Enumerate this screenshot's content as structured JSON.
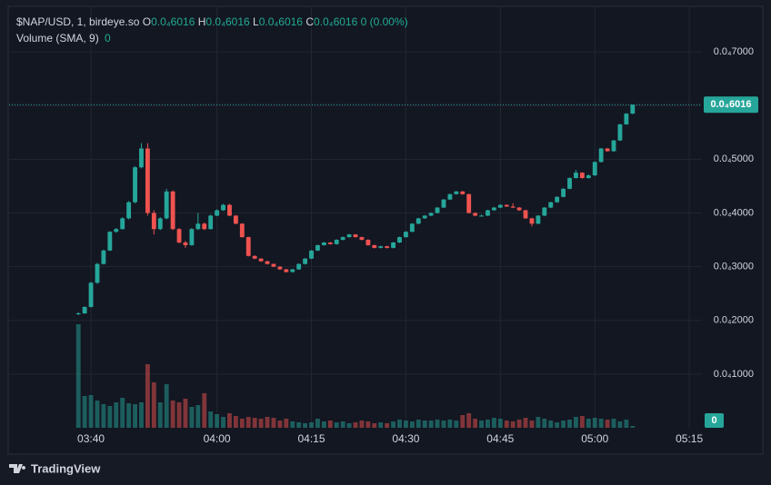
{
  "legend": {
    "symbol": "$NAP/USD, 1, birdeye.so",
    "fields": [
      {
        "key": "O",
        "value": "0.0₄6016"
      },
      {
        "key": "H",
        "value": "0.0₄6016"
      },
      {
        "key": "L",
        "value": "0.0₄6016"
      },
      {
        "key": "C",
        "value": "0.0₄6016"
      }
    ],
    "change": "0 (0.00%)"
  },
  "volume_legend": {
    "name": "Volume (SMA, 9)",
    "value": "0"
  },
  "footer": "TradingView",
  "chart_data": {
    "type": "candlestick",
    "x": [
      "03:38",
      "03:39",
      "03:40",
      "03:41",
      "03:42",
      "03:43",
      "03:44",
      "03:45",
      "03:46",
      "03:47",
      "03:48",
      "03:49",
      "03:50",
      "03:51",
      "03:52",
      "03:53",
      "03:54",
      "03:55",
      "03:56",
      "03:57",
      "03:58",
      "03:59",
      "04:00",
      "04:01",
      "04:02",
      "04:03",
      "04:04",
      "04:05",
      "04:06",
      "04:07",
      "04:08",
      "04:09",
      "04:10",
      "04:11",
      "04:12",
      "04:13",
      "04:14",
      "04:15",
      "04:16",
      "04:17",
      "04:18",
      "04:19",
      "04:20",
      "04:21",
      "04:22",
      "04:23",
      "04:24",
      "04:25",
      "04:26",
      "04:27",
      "04:28",
      "04:29",
      "04:30",
      "04:31",
      "04:32",
      "04:33",
      "04:34",
      "04:35",
      "04:36",
      "04:37",
      "04:38",
      "04:39",
      "04:40",
      "04:41",
      "04:42",
      "04:43",
      "04:44",
      "04:45",
      "04:46",
      "04:47",
      "04:48",
      "04:49",
      "04:50",
      "04:51",
      "04:52",
      "04:53",
      "04:54",
      "04:55",
      "04:56",
      "04:57",
      "04:58",
      "04:59",
      "05:00",
      "05:01",
      "05:02",
      "05:03",
      "05:04",
      "05:05",
      "05:06"
    ],
    "open": [
      2.12e-05,
      2.13e-05,
      2.25e-05,
      2.7e-05,
      3.05e-05,
      3.3e-05,
      3.65e-05,
      3.7e-05,
      3.9e-05,
      4.2e-05,
      4.85e-05,
      5.2e-05,
      4e-05,
      3.7e-05,
      3.9e-05,
      4.4e-05,
      3.7e-05,
      3.45e-05,
      3.4e-05,
      3.7e-05,
      3.8e-05,
      3.7e-05,
      3.95e-05,
      4.05e-05,
      4.15e-05,
      3.95e-05,
      3.8e-05,
      3.55e-05,
      3.2e-05,
      3.15e-05,
      3.1e-05,
      3.05e-05,
      3e-05,
      2.95e-05,
      2.9e-05,
      2.95e-05,
      3.05e-05,
      3.15e-05,
      3.3e-05,
      3.4e-05,
      3.45e-05,
      3.42e-05,
      3.5e-05,
      3.55e-05,
      3.6e-05,
      3.55e-05,
      3.5e-05,
      3.4e-05,
      3.35e-05,
      3.38e-05,
      3.35e-05,
      3.45e-05,
      3.55e-05,
      3.65e-05,
      3.8e-05,
      3.9e-05,
      3.95e-05,
      4e-05,
      4.1e-05,
      4.25e-05,
      4.35e-05,
      4.4e-05,
      4.35e-05,
      4e-05,
      3.95e-05,
      3.95e-05,
      4.05e-05,
      4.1e-05,
      4.15e-05,
      4.12e-05,
      4.1e-05,
      4.05e-05,
      3.9e-05,
      3.8e-05,
      3.95e-05,
      4.1e-05,
      4.2e-05,
      4.3e-05,
      4.45e-05,
      4.65e-05,
      4.75e-05,
      4.65e-05,
      4.7e-05,
      4.95e-05,
      5.2e-05,
      5.15e-05,
      5.35e-05,
      5.65e-05,
      5.85e-05
    ],
    "high": [
      2.15e-05,
      2.26e-05,
      2.72e-05,
      3.07e-05,
      3.32e-05,
      3.66e-05,
      3.72e-05,
      3.92e-05,
      4.22e-05,
      4.87e-05,
      5.3e-05,
      5.3e-05,
      4.05e-05,
      3.92e-05,
      4.45e-05,
      4.42e-05,
      3.72e-05,
      3.48e-05,
      3.72e-05,
      4e-05,
      3.82e-05,
      3.97e-05,
      4.07e-05,
      4.17e-05,
      4.17e-05,
      3.96e-05,
      3.81e-05,
      3.56e-05,
      3.21e-05,
      3.16e-05,
      3.11e-05,
      3.06e-05,
      3.01e-05,
      2.96e-05,
      2.96e-05,
      3.06e-05,
      3.16e-05,
      3.31e-05,
      3.41e-05,
      3.46e-05,
      3.46e-05,
      3.51e-05,
      3.56e-05,
      3.61e-05,
      3.61e-05,
      3.56e-05,
      3.51e-05,
      3.41e-05,
      3.39e-05,
      3.39e-05,
      3.46e-05,
      3.56e-05,
      3.66e-05,
      3.81e-05,
      3.91e-05,
      3.96e-05,
      4.01e-05,
      4.11e-05,
      4.26e-05,
      4.36e-05,
      4.41e-05,
      4.41e-05,
      4.36e-05,
      4.01e-05,
      3.97e-05,
      4.06e-05,
      4.11e-05,
      4.16e-05,
      4.16e-05,
      4.18e-05,
      4.11e-05,
      4.06e-05,
      3.91e-05,
      3.96e-05,
      4.11e-05,
      4.21e-05,
      4.31e-05,
      4.46e-05,
      4.66e-05,
      4.8e-05,
      4.76e-05,
      4.72e-05,
      4.96e-05,
      5.21e-05,
      5.21e-05,
      5.36e-05,
      5.66e-05,
      5.86e-05,
      6.016e-05
    ],
    "low": [
      2.1e-05,
      2.12e-05,
      2.24e-05,
      2.68e-05,
      3.04e-05,
      3.29e-05,
      3.63e-05,
      3.69e-05,
      3.88e-05,
      4.18e-05,
      4.83e-05,
      3.95e-05,
      3.6e-05,
      3.68e-05,
      3.88e-05,
      3.68e-05,
      3.43e-05,
      3.35e-05,
      3.39e-05,
      3.68e-05,
      3.68e-05,
      3.69e-05,
      3.94e-05,
      4.04e-05,
      3.94e-05,
      3.79e-05,
      3.54e-05,
      3.19e-05,
      3.14e-05,
      3.09e-05,
      3.04e-05,
      2.99e-05,
      2.94e-05,
      2.89e-05,
      2.89e-05,
      2.94e-05,
      3.04e-05,
      3.14e-05,
      3.29e-05,
      3.39e-05,
      3.41e-05,
      3.41e-05,
      3.49e-05,
      3.54e-05,
      3.54e-05,
      3.49e-05,
      3.39e-05,
      3.34e-05,
      3.34e-05,
      3.34e-05,
      3.34e-05,
      3.44e-05,
      3.54e-05,
      3.64e-05,
      3.79e-05,
      3.89e-05,
      3.94e-05,
      3.99e-05,
      4.09e-05,
      4.24e-05,
      4.34e-05,
      4.34e-05,
      3.99e-05,
      3.94e-05,
      3.93e-05,
      3.94e-05,
      4.04e-05,
      4.09e-05,
      4.11e-05,
      4.09e-05,
      4.04e-05,
      3.89e-05,
      3.75e-05,
      3.79e-05,
      3.94e-05,
      4.09e-05,
      4.19e-05,
      4.29e-05,
      4.44e-05,
      4.64e-05,
      4.64e-05,
      4.64e-05,
      4.69e-05,
      4.94e-05,
      5.14e-05,
      5.14e-05,
      5.34e-05,
      5.64e-05,
      5.84e-05
    ],
    "close": [
      2.13e-05,
      2.25e-05,
      2.7e-05,
      3.05e-05,
      3.3e-05,
      3.65e-05,
      3.7e-05,
      3.9e-05,
      4.2e-05,
      4.85e-05,
      5.2e-05,
      4e-05,
      3.7e-05,
      3.9e-05,
      4.4e-05,
      3.7e-05,
      3.45e-05,
      3.4e-05,
      3.7e-05,
      3.8e-05,
      3.7e-05,
      3.95e-05,
      4.05e-05,
      4.15e-05,
      3.95e-05,
      3.8e-05,
      3.55e-05,
      3.2e-05,
      3.15e-05,
      3.1e-05,
      3.05e-05,
      3e-05,
      2.95e-05,
      2.9e-05,
      2.95e-05,
      3.05e-05,
      3.15e-05,
      3.3e-05,
      3.4e-05,
      3.45e-05,
      3.42e-05,
      3.5e-05,
      3.55e-05,
      3.6e-05,
      3.55e-05,
      3.5e-05,
      3.4e-05,
      3.35e-05,
      3.38e-05,
      3.35e-05,
      3.45e-05,
      3.55e-05,
      3.65e-05,
      3.8e-05,
      3.9e-05,
      3.95e-05,
      4e-05,
      4.1e-05,
      4.25e-05,
      4.35e-05,
      4.4e-05,
      4.35e-05,
      4e-05,
      3.95e-05,
      3.95e-05,
      4.05e-05,
      4.1e-05,
      4.15e-05,
      4.12e-05,
      4.1e-05,
      4.05e-05,
      3.9e-05,
      3.8e-05,
      3.95e-05,
      4.1e-05,
      4.2e-05,
      4.3e-05,
      4.45e-05,
      4.65e-05,
      4.75e-05,
      4.65e-05,
      4.7e-05,
      4.95e-05,
      5.2e-05,
      5.15e-05,
      5.35e-05,
      5.65e-05,
      5.85e-05,
      6.016e-05
    ],
    "up_color": "#26a69a",
    "down_color": "#ef5350",
    "ylim": [
      0,
      7.83e-05
    ],
    "yticks": [
      {
        "value": 1e-05,
        "label": "0.0₄1000"
      },
      {
        "value": 2e-05,
        "label": "0.0₄2000"
      },
      {
        "value": 3e-05,
        "label": "0.0₄3000"
      },
      {
        "value": 4e-05,
        "label": "0.0₄4000"
      },
      {
        "value": 5e-05,
        "label": "0.0₄5000"
      },
      {
        "value": 6e-05,
        "label": "0.0₄6000"
      },
      {
        "value": 7e-05,
        "label": "0.0₄7000"
      }
    ],
    "xlim": [
      "03:27",
      "05:17"
    ],
    "xticks": [
      "03:40",
      "04:00",
      "04:15",
      "04:30",
      "04:45",
      "05:00",
      "05:15"
    ],
    "grid": true,
    "last_price": {
      "value": 6.016e-05,
      "label": "0.0₄6016"
    },
    "volume": {
      "values": [
        114,
        35,
        36,
        30,
        26,
        24,
        28,
        33,
        27,
        26,
        28,
        70,
        50,
        28,
        48,
        30,
        28,
        32,
        23,
        25,
        38,
        18,
        15,
        12,
        16,
        13,
        10,
        12,
        11,
        10,
        12,
        11,
        8,
        10,
        7,
        6,
        5,
        6,
        10,
        7,
        8,
        6,
        7,
        5,
        6,
        8,
        7,
        5,
        6,
        5,
        7,
        9,
        8,
        7,
        9,
        8,
        8,
        9,
        8,
        9,
        8,
        14,
        16,
        10,
        8,
        9,
        11,
        10,
        8,
        7,
        9,
        11,
        8,
        12,
        10,
        8,
        6,
        8,
        9,
        12,
        13,
        10,
        11,
        10,
        9,
        10,
        7,
        9,
        2
      ],
      "ylim": [
        0,
        150
      ],
      "label": "0"
    }
  }
}
